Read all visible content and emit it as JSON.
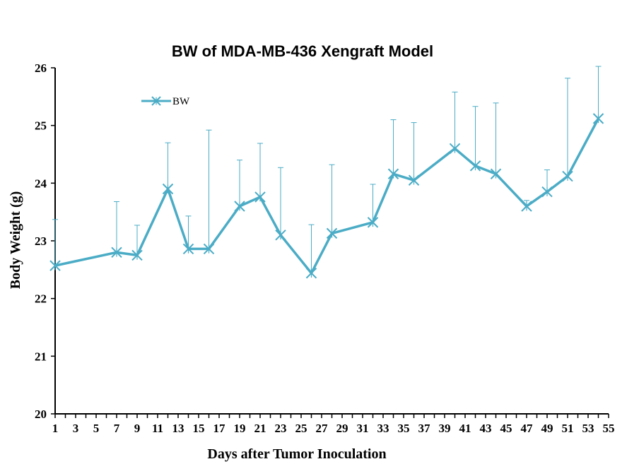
{
  "chart_data": {
    "type": "line",
    "title": "BW of MDA-MB-436 Xengraft  Model",
    "xlabel": "Days after Tumor Inoculation",
    "ylabel": "Body Weight (g)",
    "xlim": [
      1,
      55
    ],
    "ylim": [
      20,
      26
    ],
    "x_ticks": [
      "1",
      "3",
      "5",
      "7",
      "9",
      "11",
      "13",
      "15",
      "17",
      "19",
      "21",
      "23",
      "25",
      "27",
      "29",
      "31",
      "33",
      "35",
      "37",
      "39",
      "41",
      "43",
      "45",
      "47",
      "49",
      "51",
      "53",
      "55"
    ],
    "y_ticks": [
      "20",
      "21",
      "22",
      "23",
      "24",
      "25",
      "26"
    ],
    "grid": false,
    "legend_position": "top-left",
    "series": [
      {
        "name": "BW",
        "color": "#4BACC6",
        "marker": "x-star",
        "x": [
          1,
          7,
          9,
          12,
          14,
          16,
          19,
          21,
          23,
          26,
          28,
          32,
          34,
          36,
          40,
          42,
          44,
          47,
          49,
          51,
          54
        ],
        "y": [
          22.57,
          22.8,
          22.75,
          23.9,
          22.86,
          22.86,
          23.6,
          23.76,
          23.1,
          22.44,
          23.13,
          23.32,
          24.16,
          24.05,
          24.6,
          24.3,
          24.16,
          23.6,
          23.85,
          24.12,
          25.12
        ],
        "error_upper": [
          0.8,
          0.88,
          0.52,
          0.8,
          0.57,
          2.06,
          0.8,
          0.93,
          1.17,
          0.84,
          1.19,
          0.66,
          0.94,
          1.0,
          0.98,
          1.03,
          1.23,
          0.1,
          0.38,
          1.7,
          1.2
        ]
      }
    ]
  }
}
